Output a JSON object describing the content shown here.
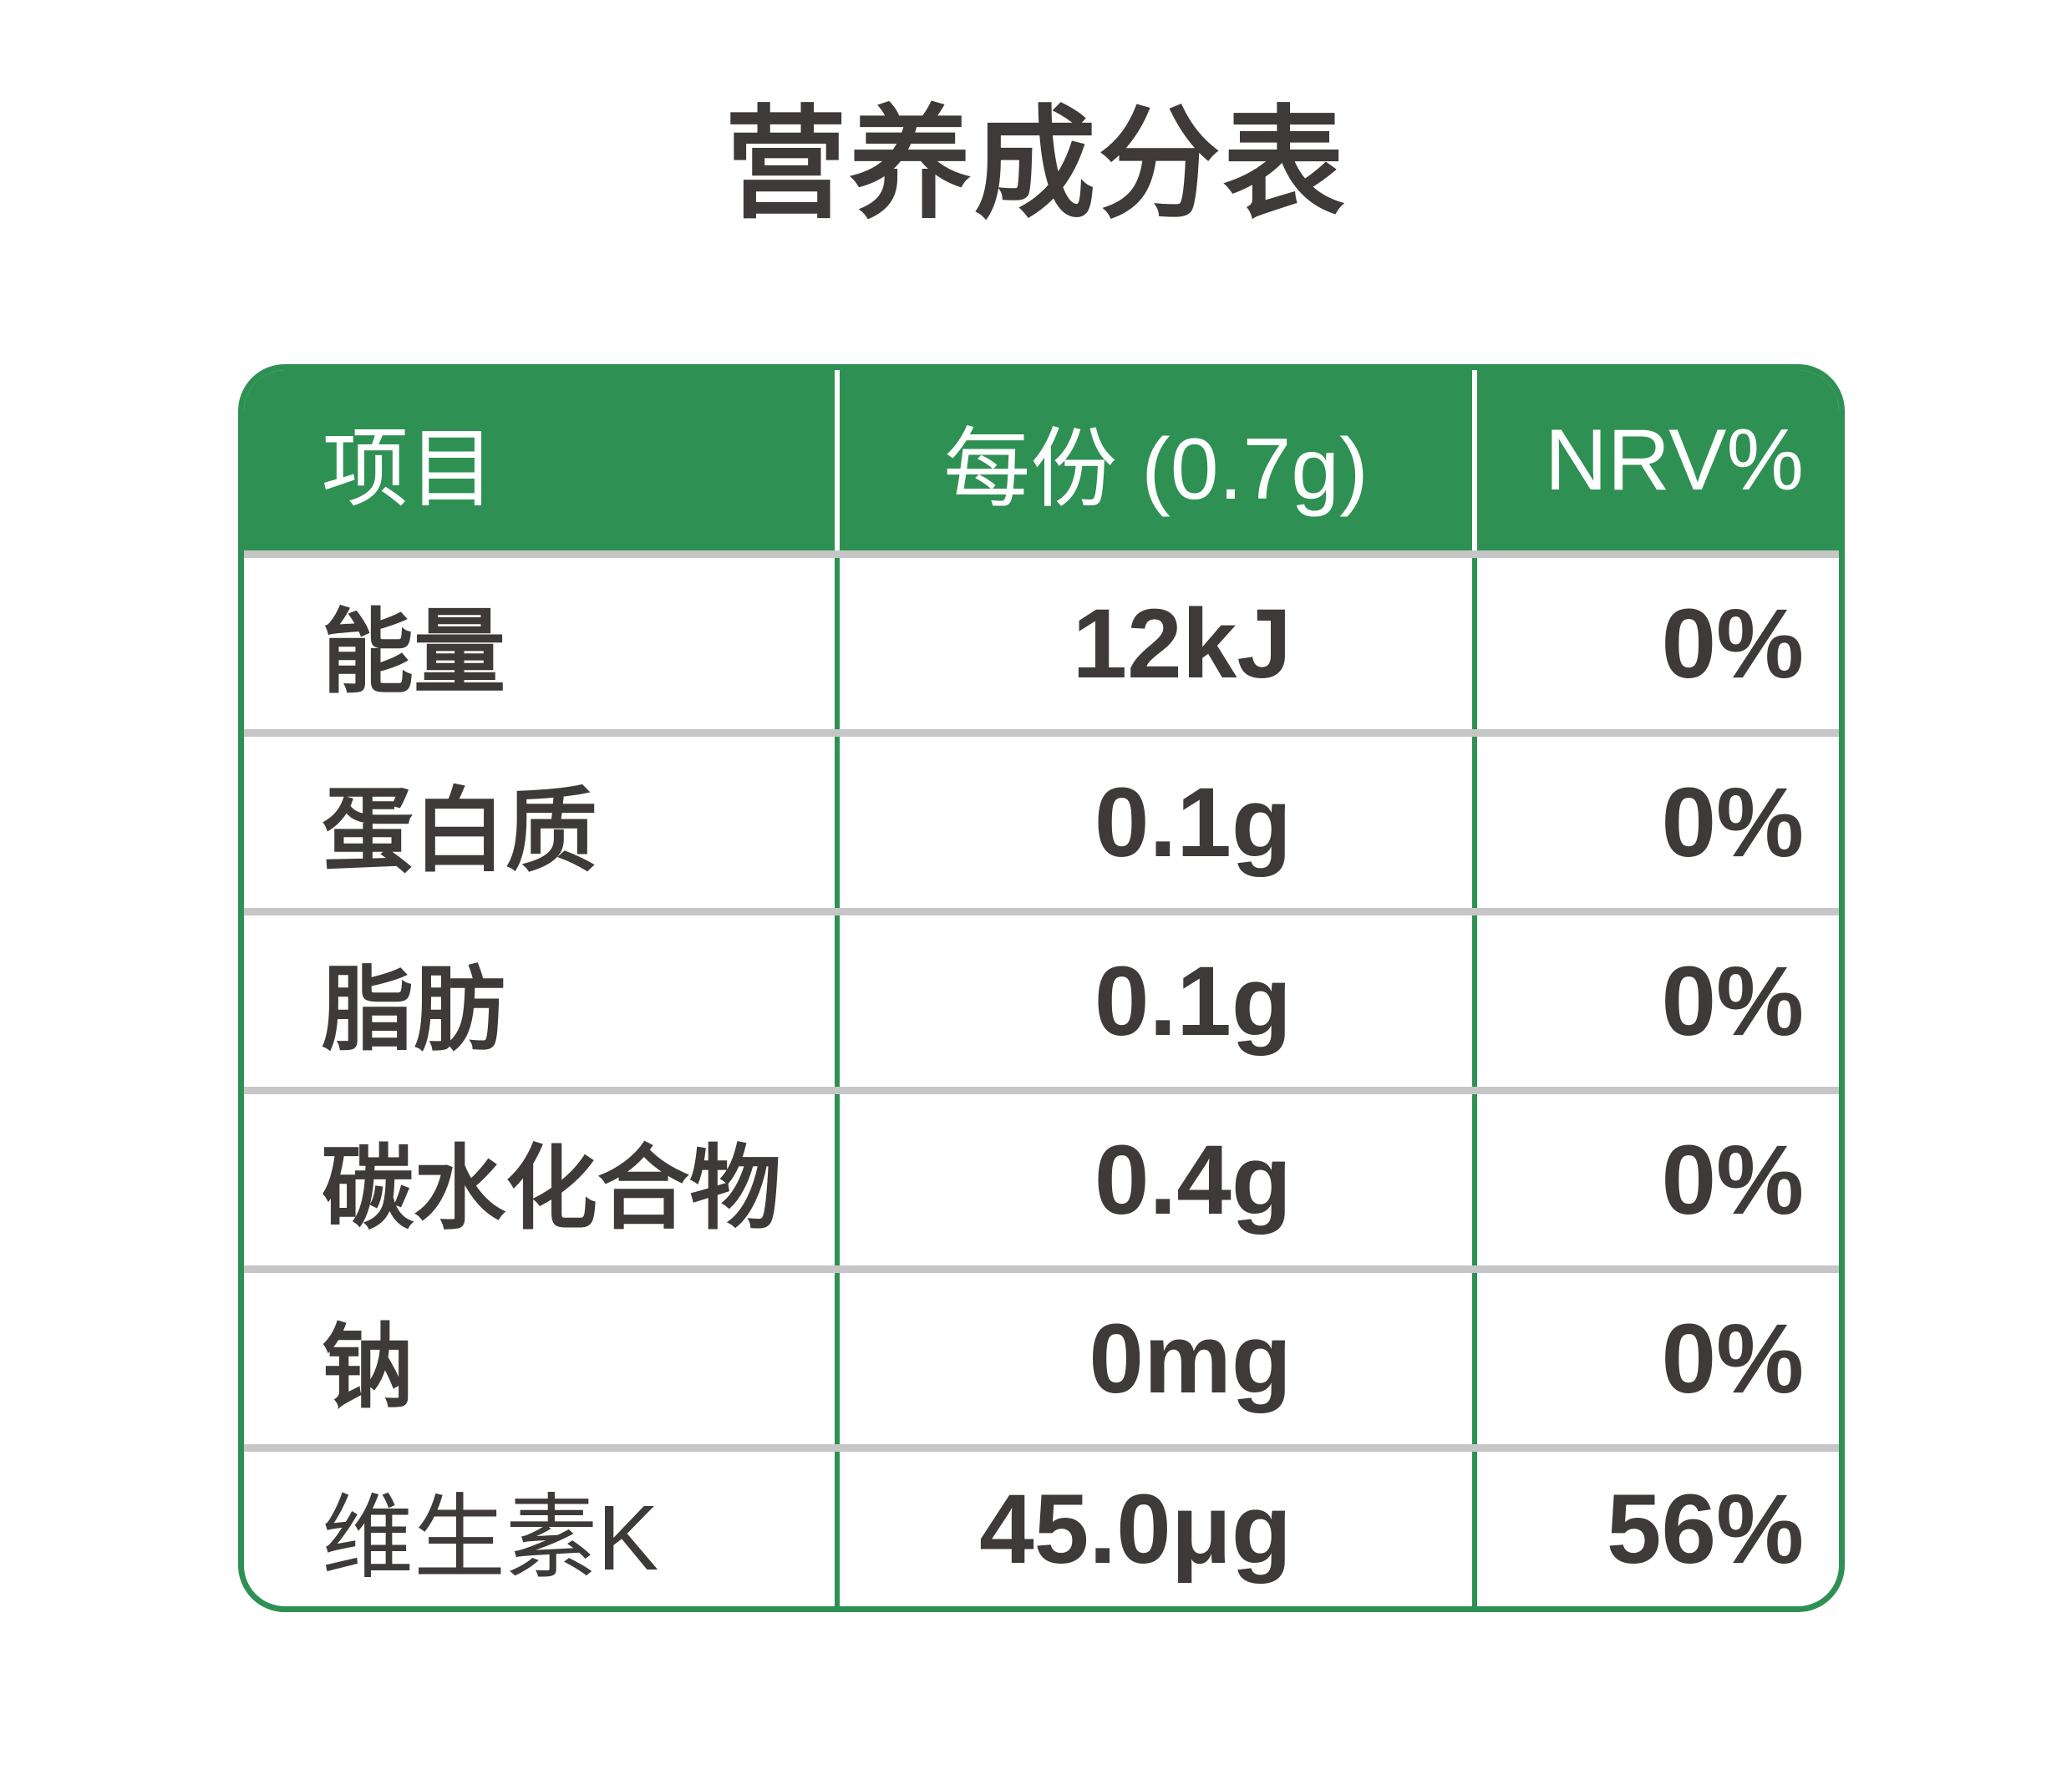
{
  "title": "营养成分表",
  "colors": {
    "header_green": "#2e9153",
    "row_separator_gray": "#c6c6c6",
    "text_dark": "#3e3a39",
    "header_text": "#ffffff",
    "background": "#ffffff"
  },
  "table": {
    "columns": [
      "项目",
      "每份 (0.7g)",
      "NRV%"
    ],
    "rows": [
      {
        "label": "能量",
        "amount": "12kJ",
        "nrv": "0%"
      },
      {
        "label": "蛋白质",
        "amount": "0.1g",
        "nrv": "0%"
      },
      {
        "label": "脂肪",
        "amount": "0.1g",
        "nrv": "0%"
      },
      {
        "label": "碳水化合物",
        "amount": "0.4g",
        "nrv": "0%"
      },
      {
        "label": "钠",
        "amount": "0mg",
        "nrv": "0%"
      },
      {
        "label": "维生素K",
        "amount": "45.0μg",
        "nrv": "56%"
      }
    ]
  }
}
